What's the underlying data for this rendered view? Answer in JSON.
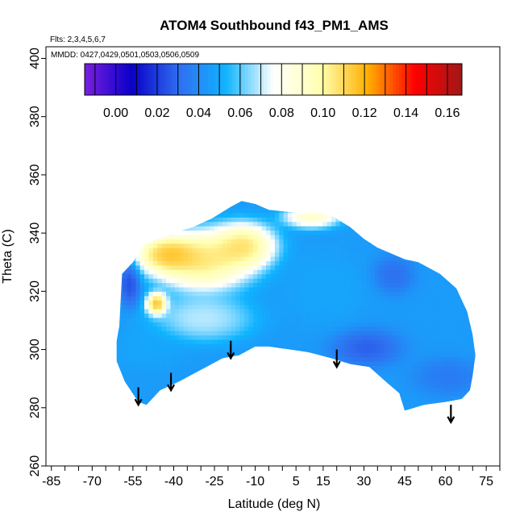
{
  "chart_data": {
    "type": "heatmap",
    "title": "ATOM4 Southbound f43_PM1_AMS",
    "subtitle_flights": "Flts: 2,3,4,5,6,7",
    "subtitle_dates": "MMDD: 0427,0429,0501,0503,0506,0509",
    "xlabel": "Latitude (deg N)",
    "ylabel": "Theta (C)",
    "xlim": [
      -87,
      80
    ],
    "ylim": [
      260,
      404
    ],
    "x_tick_labels": [
      "-85",
      "-70",
      "-55",
      "-40",
      "-25",
      "-10",
      "5",
      "15",
      "30",
      "45",
      "60",
      "75"
    ],
    "x_tick_values": [
      -85,
      -70,
      -55,
      -40,
      -25,
      -10,
      5,
      15,
      30,
      45,
      60,
      75
    ],
    "x_minor_step": 5,
    "y_tick_values": [
      260,
      280,
      300,
      320,
      340,
      360,
      380,
      400
    ],
    "y_tick_labels": [
      "260",
      "280",
      "300",
      "320",
      "340",
      "360",
      "380",
      "400"
    ],
    "colorbar": {
      "tick_labels": [
        "0.00",
        "0.02",
        "0.04",
        "0.06",
        "0.08",
        "0.10",
        "0.12",
        "0.14",
        "0.16"
      ],
      "tick_values": [
        0.0,
        0.02,
        0.04,
        0.06,
        0.08,
        0.1,
        0.12,
        0.14,
        0.16
      ],
      "range": [
        -0.015,
        0.167
      ],
      "colors": [
        "#7a1fe0",
        "#0a00c8",
        "#2f6ff0",
        "#10b4ff",
        "#ffffff",
        "#ffffb0",
        "#ffb000",
        "#ff0000",
        "#a01818"
      ]
    },
    "field_blobs": [
      {
        "lat": -30,
        "theta": 330,
        "sx": 14,
        "sy": 8,
        "value": 0.13
      },
      {
        "lat": -43,
        "theta": 332,
        "sx": 9,
        "sy": 5,
        "value": 0.14
      },
      {
        "lat": -47,
        "theta": 315,
        "sx": 3,
        "sy": 3,
        "value": 0.15
      },
      {
        "lat": -15,
        "theta": 335,
        "sx": 9,
        "sy": 6,
        "value": 0.13
      },
      {
        "lat": 10,
        "theta": 345,
        "sx": 8,
        "sy": 3,
        "value": 0.11
      },
      {
        "lat": -30,
        "theta": 310,
        "sx": 14,
        "sy": 6,
        "value": 0.08
      },
      {
        "lat": 30,
        "theta": 300,
        "sx": 10,
        "sy": 5,
        "value": 0.02
      },
      {
        "lat": 40,
        "theta": 325,
        "sx": 6,
        "sy": 5,
        "value": 0.025
      },
      {
        "lat": 60,
        "theta": 290,
        "sx": 10,
        "sy": 5,
        "value": 0.03
      },
      {
        "lat": -57,
        "theta": 322,
        "sx": 3,
        "sy": 6,
        "value": 0.015
      },
      {
        "lat": -50,
        "theta": 300,
        "sx": 10,
        "sy": 6,
        "value": 0.05
      },
      {
        "lat": 15,
        "theta": 320,
        "sx": 12,
        "sy": 10,
        "value": 0.05
      }
    ],
    "field_background": 0.045,
    "arrows": [
      {
        "lat": -53,
        "theta_top": 287,
        "theta_tip": 281
      },
      {
        "lat": -41,
        "theta_top": 292,
        "theta_tip": 286
      },
      {
        "lat": -19,
        "theta_top": 303,
        "theta_tip": 297
      },
      {
        "lat": 20,
        "theta_top": 300,
        "theta_tip": 294
      },
      {
        "lat": 62,
        "theta_top": 281,
        "theta_tip": 275
      }
    ]
  }
}
